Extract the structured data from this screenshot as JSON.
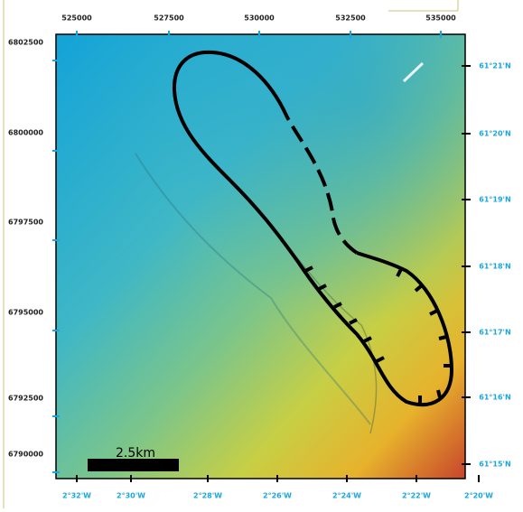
{
  "map": {
    "top_labels": [
      "525000",
      "527500",
      "530000",
      "532500",
      "535000"
    ],
    "left_labels": [
      "6802500",
      "6800000",
      "6797500",
      "6795000",
      "6792500",
      "6790000"
    ],
    "right_labels": [
      "61°21'N",
      "61°20'N",
      "61°19'N",
      "61°18'N",
      "61°17'N",
      "61°16'N",
      "61°15'N"
    ],
    "bottom_labels": [
      "2°32'W",
      "2°30'W",
      "2°28'W",
      "2°26'W",
      "2°24'W",
      "2°22'W",
      "2°20'W"
    ],
    "scale_bar": "2.5km"
  }
}
